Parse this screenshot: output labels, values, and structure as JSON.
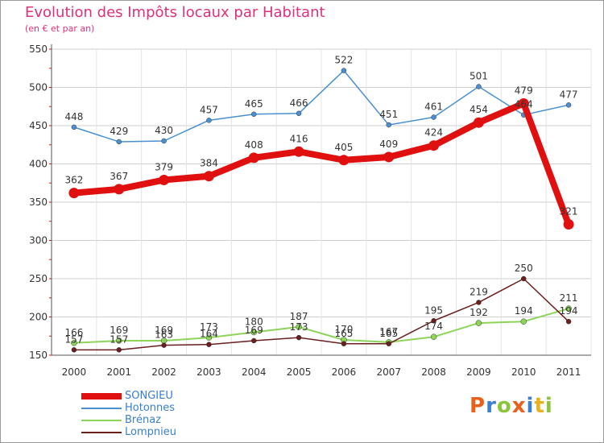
{
  "title": "Evolution des Impôts locaux par Habitant",
  "subtitle": "(en € et par an)",
  "logo": "Proxiti",
  "chart_data": {
    "type": "line",
    "x": [
      "2000",
      "2001",
      "2002",
      "2003",
      "2004",
      "2005",
      "2006",
      "2007",
      "2008",
      "2009",
      "2010",
      "2011"
    ],
    "ylim": [
      150,
      550
    ],
    "yticks": [
      150,
      200,
      250,
      300,
      350,
      400,
      450,
      500,
      550
    ],
    "grid": true,
    "legend_position": "bottom-left",
    "series": [
      {
        "name": "SONGIEU",
        "color": "#e01010",
        "values": [
          362,
          367,
          379,
          384,
          408,
          416,
          405,
          409,
          424,
          454,
          479,
          321
        ]
      },
      {
        "name": "Hotonnes",
        "color": "#4a90d0",
        "values": [
          448,
          429,
          430,
          457,
          465,
          466,
          522,
          451,
          461,
          501,
          464,
          477
        ]
      },
      {
        "name": "Brénaz",
        "color": "#8ed45a",
        "values": [
          166,
          169,
          169,
          173,
          180,
          187,
          170,
          167,
          174,
          192,
          194,
          211
        ]
      },
      {
        "name": "Lompnieu",
        "color": "#6b1e1e",
        "values": [
          157,
          157,
          163,
          164,
          169,
          173,
          165,
          165,
          195,
          219,
          250,
          194
        ]
      }
    ]
  }
}
